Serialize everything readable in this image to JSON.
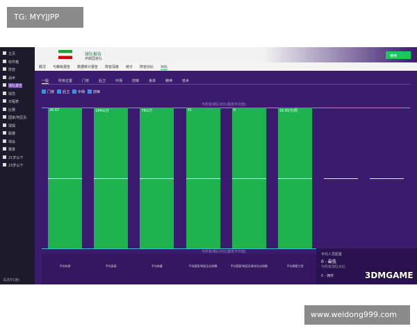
{
  "watermarks": {
    "top_left": "TG: MYYJJPP",
    "bottom_right": "www.weidong999.com",
    "logo": "3DMGAME"
  },
  "header": {
    "title": "球队报告",
    "subtitle": "伊朗国家队",
    "continue": "继续"
  },
  "sidebar": [
    "主页",
    "收件箱",
    "阵容",
    "战术",
    "球队报告",
    "球员",
    "日程表",
    "比赛",
    "国家/地区队",
    "球探",
    "联赛",
    "球会",
    "赛季",
    "21岁以下",
    "23岁以下"
  ],
  "sidebar_footer": "乌法尔(迷)",
  "tabs": [
    "概况",
    "与教练报告",
    "数据统计报告",
    "阵容深度",
    "统计",
    "阵容对比",
    "对比"
  ],
  "subtabs": [
    "一般",
    "所有位置",
    "门将",
    "后卫",
    "中场",
    "前锋",
    "身体",
    "精神",
    "技术"
  ],
  "filters": [
    "门将",
    "后卫",
    "中场",
    "前锋"
  ],
  "chart": {
    "top_line": "与所有球队对比(最高平均值)",
    "bottom_line": "与所有球队对比(最低平均值)",
    "bars": [
      {
        "value": "26.67",
        "label": "平均年龄"
      },
      {
        "value": "184公分",
        "label": "平均身高"
      },
      {
        "value": "78公斤",
        "label": "平均体重"
      },
      {
        "value": "31",
        "label": "平均国家/地区队出场数"
      },
      {
        "value": "0",
        "label": "平均国家/地区队青年队出场数"
      },
      {
        "value": "16.65万/周",
        "label": "平均周薪工资"
      }
    ]
  },
  "panel": {
    "title": "平均人员配置",
    "best": "0 - 最低",
    "note": "与所有球队对比",
    "worst": "0 - 拥挤"
  }
}
